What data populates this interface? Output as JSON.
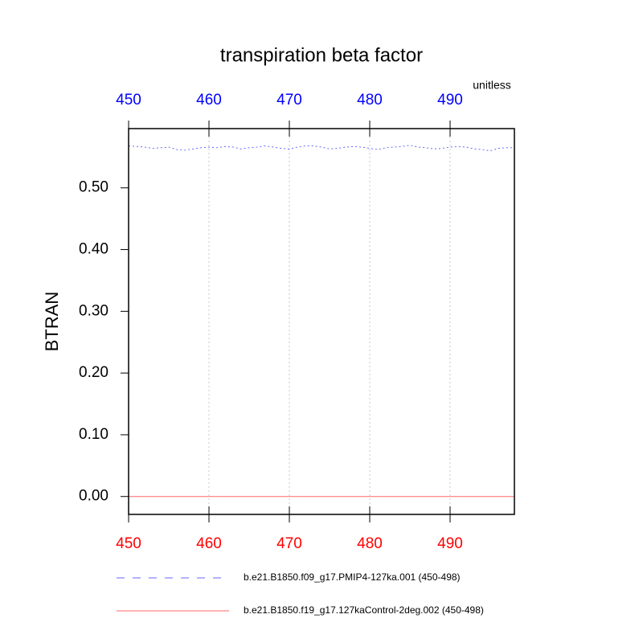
{
  "chart_data": {
    "type": "line",
    "title": "transpiration beta factor",
    "ylabel": "BTRAN",
    "units": "unitless",
    "x": [
      450,
      451,
      452,
      453,
      454,
      455,
      456,
      457,
      458,
      459,
      460,
      461,
      462,
      463,
      464,
      465,
      466,
      467,
      468,
      469,
      470,
      471,
      472,
      473,
      474,
      475,
      476,
      477,
      478,
      479,
      480,
      481,
      482,
      483,
      484,
      485,
      486,
      487,
      488,
      489,
      490,
      491,
      492,
      493,
      494,
      495,
      496,
      497,
      498
    ],
    "series": [
      {
        "name": "b.e21.B1850.f09_g17.PMIP4-127ka.001 (450-498)",
        "color": "#0000ff",
        "dash": true,
        "values": [
          0.568,
          0.567,
          0.566,
          0.564,
          0.565,
          0.566,
          0.562,
          0.561,
          0.563,
          0.565,
          0.566,
          0.565,
          0.567,
          0.566,
          0.563,
          0.565,
          0.566,
          0.568,
          0.566,
          0.564,
          0.563,
          0.566,
          0.568,
          0.568,
          0.566,
          0.563,
          0.564,
          0.566,
          0.567,
          0.566,
          0.564,
          0.562,
          0.565,
          0.566,
          0.567,
          0.569,
          0.566,
          0.565,
          0.563,
          0.564,
          0.566,
          0.567,
          0.566,
          0.563,
          0.562,
          0.56,
          0.564,
          0.565,
          0.565
        ]
      },
      {
        "name": "b.e21.B1850.f19_g17.127kaControl-2deg.002 (450-498)",
        "color": "#ff0000",
        "dash": false,
        "values": [
          0,
          0,
          0,
          0,
          0,
          0,
          0,
          0,
          0,
          0,
          0,
          0,
          0,
          0,
          0,
          0,
          0,
          0,
          0,
          0,
          0,
          0,
          0,
          0,
          0,
          0,
          0,
          0,
          0,
          0,
          0,
          0,
          0,
          0,
          0,
          0,
          0,
          0,
          0,
          0,
          0,
          0,
          0,
          0,
          0,
          0,
          0,
          0,
          0
        ]
      }
    ],
    "xlim": [
      450,
      498
    ],
    "xticks": [
      450,
      460,
      470,
      480,
      490
    ],
    "x2ticks": [
      450,
      460,
      470,
      480,
      490
    ],
    "ylim": [
      -0.029,
      0.596
    ],
    "yticks": [
      {
        "value": 0,
        "label": "0.00"
      },
      {
        "value": 0.1,
        "label": "0.10"
      },
      {
        "value": 0.2,
        "label": "0.20"
      },
      {
        "value": 0.3,
        "label": "0.30"
      },
      {
        "value": 0.4,
        "label": "0.40"
      },
      {
        "value": 0.5,
        "label": "0.50"
      }
    ],
    "grid": true,
    "xtick_color": "#ff0000",
    "x2tick_color": "#0000ff"
  }
}
